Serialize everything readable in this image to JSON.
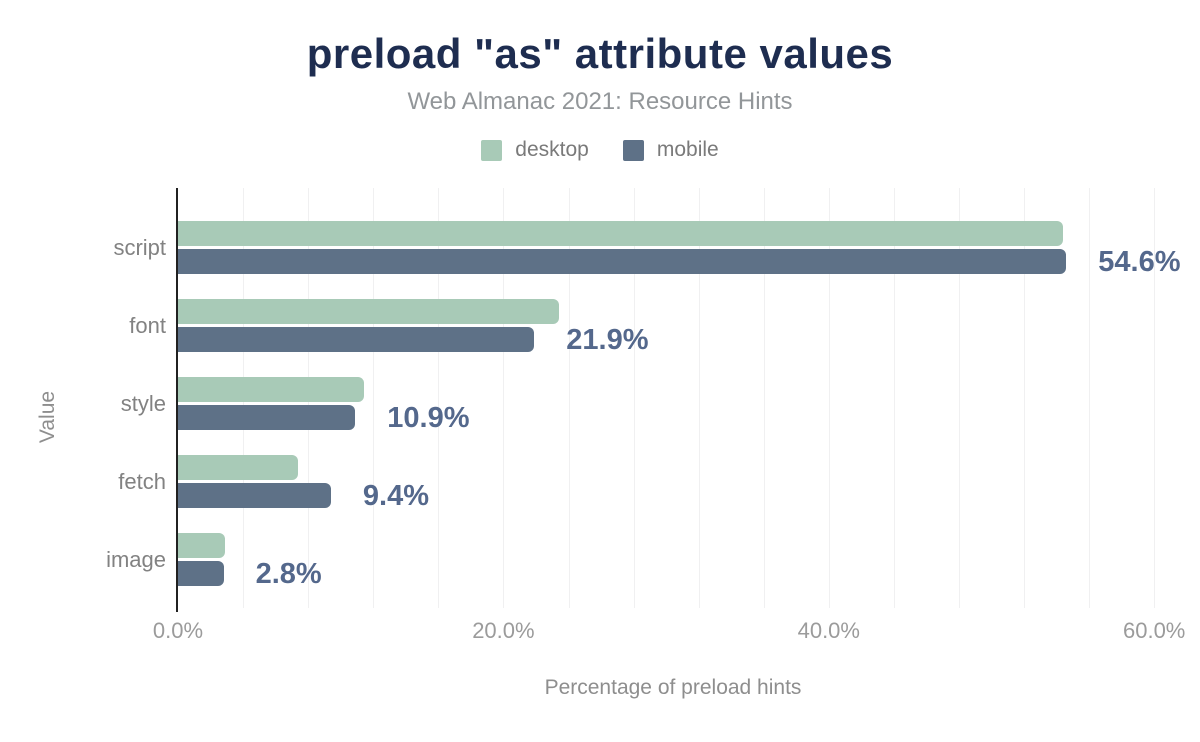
{
  "title": "preload \"as\" attribute values",
  "subtitle": "Web Almanac 2021: Resource Hints",
  "chart_data": {
    "type": "bar",
    "orientation": "horizontal",
    "title": "preload \"as\" attribute values",
    "subtitle": "Web Almanac 2021: Resource Hints",
    "categories": [
      "script",
      "font",
      "style",
      "fetch",
      "image"
    ],
    "series": [
      {
        "name": "desktop",
        "color": "#a8cab7",
        "values": [
          54.4,
          23.4,
          11.4,
          7.4,
          2.9
        ]
      },
      {
        "name": "mobile",
        "color": "#5e7187",
        "values": [
          54.6,
          21.9,
          10.9,
          9.4,
          2.8
        ]
      }
    ],
    "data_labels": [
      "54.6%",
      "21.9%",
      "10.9%",
      "9.4%",
      "2.8%"
    ],
    "data_labels_series": "mobile",
    "xlabel": "Percentage of preload hints",
    "ylabel": "Value",
    "x_ticks": [
      "0.0%",
      "20.0%",
      "40.0%",
      "60.0%"
    ],
    "x_tick_values": [
      0,
      20,
      40,
      60
    ],
    "xlim": [
      0,
      60.8
    ],
    "grid": true,
    "minor_grid_step_percent": 4,
    "legend_position": "top"
  },
  "colors": {
    "background": "#ffffff",
    "title_text": "#1e2d50",
    "subtitle_text": "#929699",
    "legend_text": "#7a7a7a",
    "category_label_text": "#828282",
    "tick_label_text": "#9b9b9b",
    "axis_title_text": "#8e8e8e",
    "data_label_text": "#54688c",
    "axis_line": "#212121",
    "gridline": "#f0f0f1",
    "desktop_series": "#a8cab7",
    "mobile_series": "#5e7187"
  }
}
